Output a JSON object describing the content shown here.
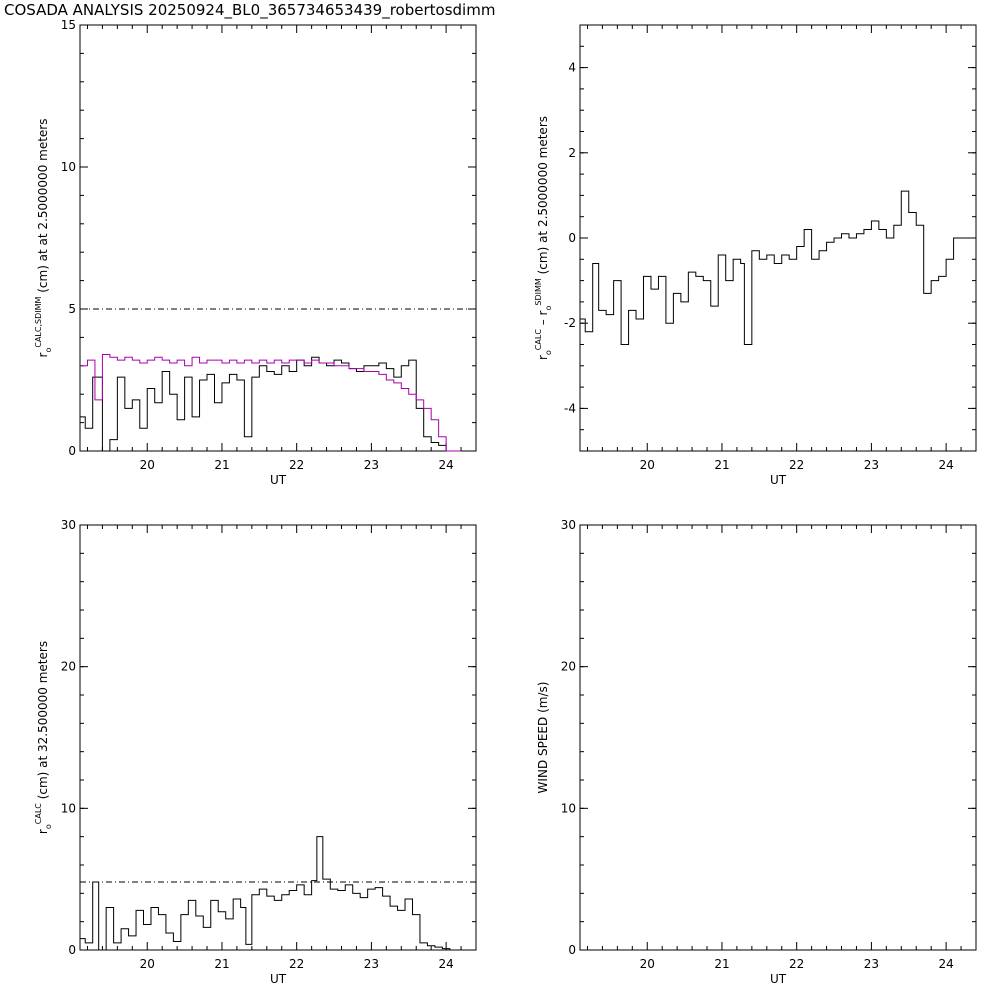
{
  "title": "COSADA ANALYSIS 20250924_BL0_365734653439_robertosdimm",
  "colors": {
    "calc": "#000000",
    "sdimm": "#aa00aa",
    "reference": "#000000"
  },
  "chart_data": [
    {
      "type": "line",
      "xlabel": "UT",
      "ylabel": {
        "base": "r",
        "sub": "o",
        "sup": "CALC,SDIMM",
        "rest": " (cm) at  at 2.5000000 meters"
      },
      "xlim": [
        19.1,
        24.4
      ],
      "ylim": [
        0,
        15
      ],
      "xticks": [
        20,
        21,
        22,
        23,
        24
      ],
      "yticks": [
        0,
        5,
        10,
        15
      ],
      "reference_line": 5,
      "series": [
        {
          "key": "calc",
          "x": [
            19.1,
            19.17,
            19.27,
            19.4,
            19.5,
            19.6,
            19.7,
            19.8,
            19.9,
            20.0,
            20.1,
            20.2,
            20.3,
            20.4,
            20.5,
            20.6,
            20.7,
            20.8,
            20.9,
            21.0,
            21.1,
            21.2,
            21.3,
            21.4,
            21.5,
            21.6,
            21.7,
            21.8,
            21.9,
            22.0,
            22.1,
            22.2,
            22.3,
            22.4,
            22.5,
            22.6,
            22.7,
            22.8,
            22.9,
            23.0,
            23.1,
            23.2,
            23.3,
            23.4,
            23.5,
            23.6,
            23.7,
            23.8,
            23.9,
            24.0
          ],
          "y": [
            1.2,
            0.8,
            2.6,
            0.0,
            0.4,
            2.6,
            1.5,
            1.8,
            0.8,
            2.2,
            1.7,
            2.8,
            2.0,
            1.1,
            2.6,
            1.2,
            2.5,
            2.7,
            1.7,
            2.4,
            2.7,
            2.5,
            0.5,
            2.6,
            3.0,
            2.8,
            2.7,
            3.0,
            2.8,
            3.2,
            3.0,
            3.3,
            3.1,
            3.0,
            3.2,
            3.1,
            2.9,
            2.8,
            3.0,
            3.0,
            3.1,
            2.9,
            2.6,
            3.0,
            3.2,
            1.5,
            0.5,
            0.3,
            0.2,
            0.0
          ]
        },
        {
          "key": "sdimm",
          "x": [
            19.1,
            19.2,
            19.3,
            19.4,
            19.5,
            19.6,
            19.7,
            19.8,
            19.9,
            20.0,
            20.1,
            20.2,
            20.3,
            20.4,
            20.5,
            20.6,
            20.7,
            20.8,
            20.9,
            21.0,
            21.1,
            21.2,
            21.3,
            21.4,
            21.5,
            21.6,
            21.7,
            21.8,
            21.9,
            22.0,
            22.1,
            22.2,
            22.3,
            22.4,
            22.5,
            22.6,
            22.7,
            22.8,
            22.9,
            23.0,
            23.1,
            23.2,
            23.3,
            23.4,
            23.5,
            23.6,
            23.7,
            23.8,
            23.9,
            24.0,
            24.1
          ],
          "y": [
            3.0,
            3.2,
            1.8,
            3.4,
            3.3,
            3.2,
            3.3,
            3.2,
            3.1,
            3.2,
            3.3,
            3.2,
            3.1,
            3.2,
            3.0,
            3.3,
            3.1,
            3.2,
            3.2,
            3.1,
            3.2,
            3.1,
            3.2,
            3.1,
            3.2,
            3.1,
            3.2,
            3.1,
            3.2,
            3.2,
            3.1,
            3.2,
            3.1,
            3.1,
            3.0,
            3.0,
            2.9,
            2.9,
            2.8,
            2.8,
            2.7,
            2.5,
            2.4,
            2.2,
            2.0,
            1.8,
            1.5,
            1.1,
            0.5,
            0.0,
            0.0
          ]
        }
      ]
    },
    {
      "type": "line",
      "xlabel": "UT",
      "ylabel": {
        "base": "r",
        "sub": "o",
        "sup": "CALC",
        "rest": "  –  r",
        "sub2": "o",
        "sup2": "SDIMM",
        "rest2": " (cm) at 2.5000000 meters"
      },
      "xlim": [
        19.1,
        24.4
      ],
      "ylim": [
        -5,
        5
      ],
      "xticks": [
        20,
        21,
        22,
        23,
        24
      ],
      "yticks": [
        -4,
        -2,
        0,
        2,
        4
      ],
      "series": [
        {
          "key": "calc",
          "x": [
            19.1,
            19.17,
            19.27,
            19.35,
            19.45,
            19.55,
            19.65,
            19.75,
            19.85,
            19.95,
            20.05,
            20.15,
            20.25,
            20.35,
            20.45,
            20.55,
            20.65,
            20.75,
            20.85,
            20.95,
            21.05,
            21.15,
            21.25,
            21.3,
            21.4,
            21.5,
            21.6,
            21.7,
            21.8,
            21.9,
            22.0,
            22.1,
            22.2,
            22.3,
            22.4,
            22.5,
            22.6,
            22.7,
            22.8,
            22.9,
            23.0,
            23.1,
            23.2,
            23.3,
            23.4,
            23.5,
            23.6,
            23.7,
            23.8,
            23.9,
            24.0,
            24.1,
            24.2,
            24.3
          ],
          "y": [
            -1.9,
            -2.2,
            -0.6,
            -1.7,
            -1.8,
            -1.0,
            -2.5,
            -1.7,
            -1.9,
            -0.9,
            -1.2,
            -0.9,
            -2.0,
            -1.3,
            -1.5,
            -0.8,
            -0.9,
            -1.0,
            -1.6,
            -0.4,
            -1.0,
            -0.5,
            -0.6,
            -2.5,
            -0.3,
            -0.5,
            -0.4,
            -0.6,
            -0.4,
            -0.5,
            -0.2,
            0.2,
            -0.5,
            -0.3,
            -0.1,
            0.0,
            0.1,
            0.0,
            0.1,
            0.2,
            0.4,
            0.2,
            0.0,
            0.3,
            1.1,
            0.6,
            0.3,
            -1.3,
            -1.0,
            -0.9,
            -0.5,
            0.0,
            0.0,
            0.0
          ]
        }
      ]
    },
    {
      "type": "line",
      "xlabel": "UT",
      "ylabel": {
        "base": "r",
        "sub": "o",
        "sup": "CALC",
        "rest": " (cm) at 32.500000 meters"
      },
      "xlim": [
        19.1,
        24.4
      ],
      "ylim": [
        0,
        30
      ],
      "xticks": [
        20,
        21,
        22,
        23,
        24
      ],
      "yticks": [
        0,
        10,
        20,
        30
      ],
      "reference_line": 4.8,
      "series": [
        {
          "key": "calc",
          "x": [
            19.1,
            19.17,
            19.27,
            19.35,
            19.45,
            19.55,
            19.65,
            19.75,
            19.85,
            19.95,
            20.05,
            20.15,
            20.25,
            20.35,
            20.45,
            20.55,
            20.65,
            20.75,
            20.85,
            20.95,
            21.05,
            21.15,
            21.25,
            21.32,
            21.4,
            21.5,
            21.6,
            21.7,
            21.8,
            21.9,
            22.0,
            22.1,
            22.2,
            22.27,
            22.35,
            22.45,
            22.55,
            22.65,
            22.75,
            22.85,
            22.95,
            23.05,
            23.15,
            23.25,
            23.35,
            23.45,
            23.55,
            23.65,
            23.75,
            23.85,
            23.95,
            24.05
          ],
          "y": [
            0.8,
            0.5,
            4.8,
            0.0,
            3.0,
            0.5,
            1.5,
            1.0,
            2.8,
            1.8,
            3.0,
            2.5,
            1.2,
            0.6,
            2.5,
            3.5,
            2.4,
            1.6,
            3.5,
            2.7,
            2.2,
            3.6,
            3.0,
            0.4,
            3.9,
            4.3,
            3.8,
            3.5,
            3.9,
            4.2,
            4.6,
            3.9,
            4.9,
            8.0,
            5.0,
            4.3,
            4.2,
            4.6,
            4.0,
            3.7,
            4.3,
            4.4,
            3.8,
            3.1,
            2.8,
            3.6,
            2.5,
            0.5,
            0.3,
            0.2,
            0.1,
            0.0
          ]
        }
      ]
    },
    {
      "type": "line",
      "xlabel": "UT",
      "ylabel": {
        "base": "WIND SPEED (m/s)"
      },
      "xlim": [
        19.1,
        24.4
      ],
      "ylim": [
        0,
        30
      ],
      "xticks": [
        20,
        21,
        22,
        23,
        24
      ],
      "yticks": [
        0,
        10,
        20,
        30
      ],
      "series": []
    }
  ]
}
